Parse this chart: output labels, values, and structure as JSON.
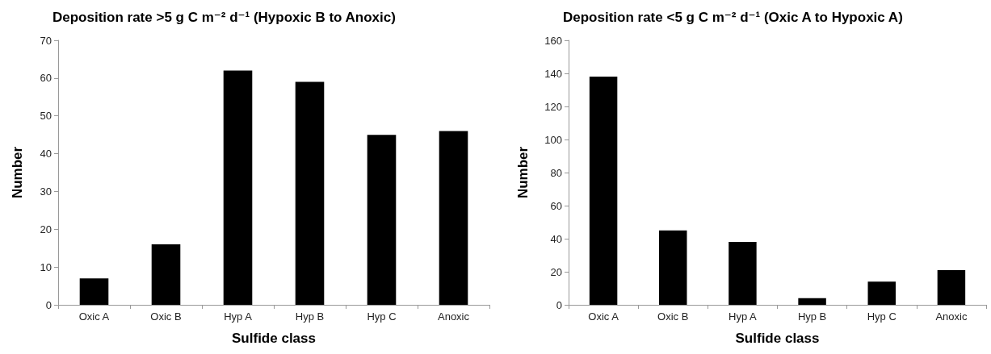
{
  "chart_data": [
    {
      "type": "bar",
      "title": "Deposition rate >5 g C m⁻² d⁻¹ (Hypoxic B to Anoxic)",
      "xlabel": "Sulfide class",
      "ylabel": "Number",
      "categories": [
        "Oxic A",
        "Oxic B",
        "Hyp A",
        "Hyp B",
        "Hyp C",
        "Anoxic"
      ],
      "values": [
        7,
        16,
        62,
        59,
        45,
        46
      ],
      "color": "#000000",
      "ylim": [
        0,
        70
      ],
      "yticks": [
        0,
        10,
        20,
        30,
        40,
        50,
        60,
        70
      ]
    },
    {
      "type": "bar",
      "title": "Deposition rate <5 g C m⁻² d⁻¹ (Oxic A to Hypoxic A)",
      "xlabel": "Sulfide class",
      "ylabel": "Number",
      "categories": [
        "Oxic A",
        "Oxic B",
        "Hyp A",
        "Hyp B",
        "Hyp C",
        "Anoxic"
      ],
      "values": [
        138,
        45,
        38,
        4,
        14,
        21
      ],
      "color": "#000000",
      "ylim": [
        0,
        160
      ],
      "yticks": [
        0,
        20,
        40,
        60,
        80,
        100,
        120,
        140,
        160
      ]
    }
  ]
}
